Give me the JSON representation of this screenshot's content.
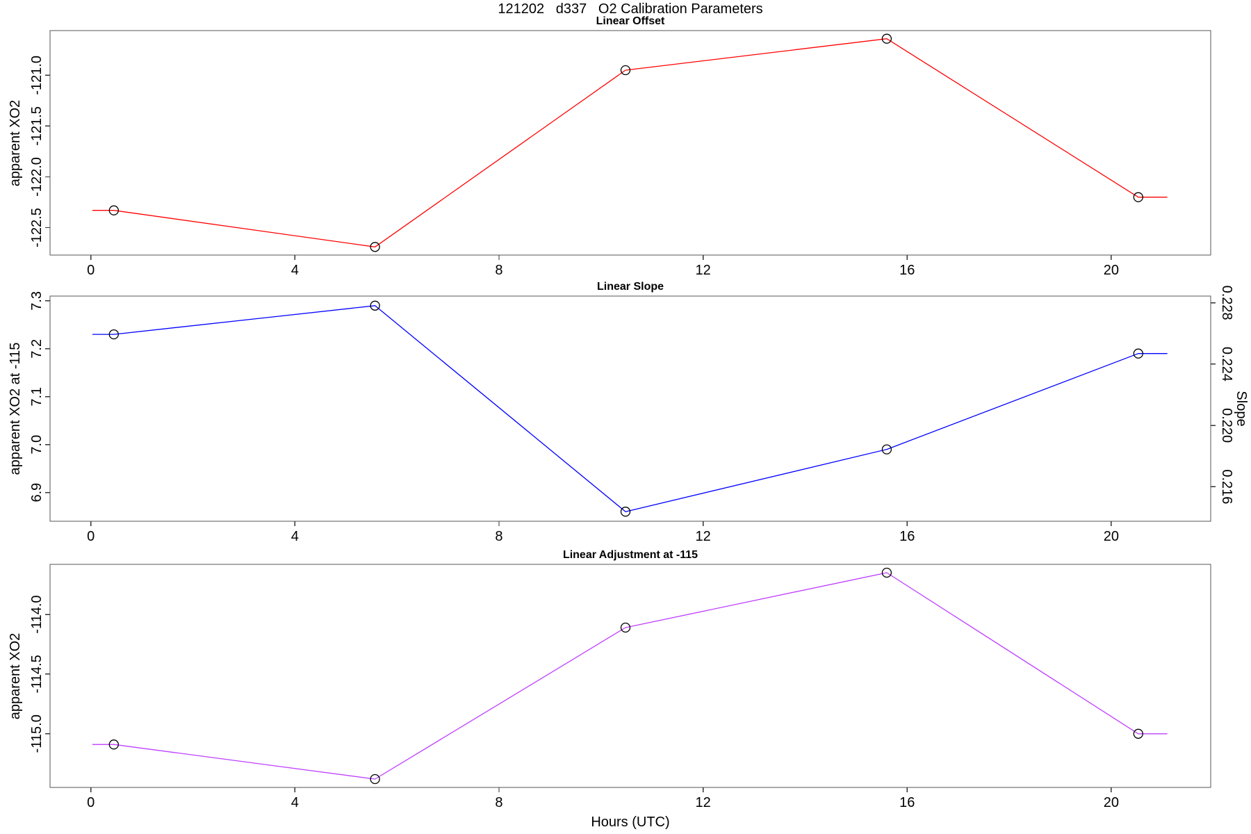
{
  "title": "121202   d337   O2 Calibration Parameters",
  "xlabel": "Hours (UTC)",
  "marker": "open-circle",
  "marker_color": "#000000",
  "x_axis": {
    "ticks": [
      0,
      4,
      8,
      12,
      16,
      20
    ],
    "tick_labels": [
      "0",
      "4",
      "8",
      "12",
      "16",
      "20"
    ],
    "xlim": [
      -0.8,
      21.95
    ]
  },
  "chart_data": [
    {
      "type": "line",
      "title": "Linear Offset",
      "ylabel": "apparent XO2",
      "series_color": "#ff0000",
      "x": [
        0.45,
        5.57,
        10.48,
        15.6,
        20.53
      ],
      "y": [
        -122.33,
        -122.69,
        -120.95,
        -120.64,
        -122.2
      ],
      "line_ends_x": [
        0.03,
        21.1
      ],
      "yticks": [
        -121.0,
        -121.5,
        -122.0,
        -122.5
      ],
      "ytick_labels": [
        "-121.0",
        "-121.5",
        "-122.0",
        "-122.5"
      ],
      "ylim": [
        -122.77,
        -120.56
      ]
    },
    {
      "type": "line",
      "title": "Linear Slope",
      "ylabel": "apparent XO2 at -115",
      "ylabel_right": "Slope",
      "series_color": "#0000ff",
      "x": [
        0.45,
        5.57,
        10.48,
        15.6,
        20.53
      ],
      "y": [
        7.23,
        7.29,
        6.86,
        6.99,
        7.19
      ],
      "y_right": [
        0.2259,
        0.2278,
        0.2144,
        0.2184,
        0.2247
      ],
      "line_ends_x": [
        0.03,
        21.1
      ],
      "yticks": [
        7.3,
        7.2,
        7.1,
        7.0,
        6.9
      ],
      "ytick_labels": [
        "7.3",
        "7.2",
        "7.1",
        "7.0",
        "6.9"
      ],
      "right_ticks": [
        0.228,
        0.224,
        0.22,
        0.216
      ],
      "right_tick_labels": [
        "0.228",
        "0.224",
        "0.220",
        "0.216"
      ],
      "right_axis_factor": 32,
      "ylim": [
        6.84,
        7.31
      ]
    },
    {
      "type": "line",
      "title": "Linear Adjustment at -115",
      "ylabel": "apparent XO2",
      "series_color": "#bf3eff",
      "x": [
        0.45,
        5.57,
        10.48,
        15.6,
        20.53
      ],
      "y": [
        -115.09,
        -115.38,
        -114.11,
        -113.65,
        -115.0
      ],
      "line_ends_x": [
        0.03,
        21.1
      ],
      "yticks": [
        -114.0,
        -114.5,
        -115.0
      ],
      "ytick_labels": [
        "-114.0",
        "-114.5",
        "-115.0"
      ],
      "ylim": [
        -115.45,
        -113.58
      ]
    }
  ]
}
